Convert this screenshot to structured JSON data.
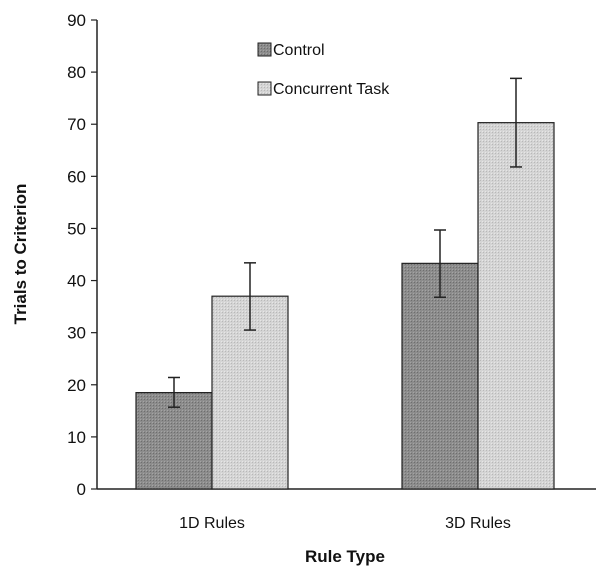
{
  "chart_data": {
    "type": "bar",
    "title": "",
    "xlabel": "Rule Type",
    "ylabel": "Trials to Criterion",
    "ylim": [
      0,
      90
    ],
    "yticks": [
      0,
      10,
      20,
      30,
      40,
      50,
      60,
      70,
      80,
      90
    ],
    "categories": [
      "1D Rules",
      "3D Rules"
    ],
    "series": [
      {
        "name": "Control",
        "values": [
          18.5,
          43.3
        ],
        "error": [
          [
            15.7,
            21.4
          ],
          [
            36.8,
            49.7
          ]
        ],
        "color": "#8c8c8c"
      },
      {
        "name": "Concurrent Task",
        "values": [
          37.0,
          70.3
        ],
        "error": [
          [
            30.5,
            43.4
          ],
          [
            61.8,
            78.8
          ]
        ],
        "color": "#d2d2d2"
      }
    ],
    "legend_position": "top-left",
    "grid": false
  }
}
